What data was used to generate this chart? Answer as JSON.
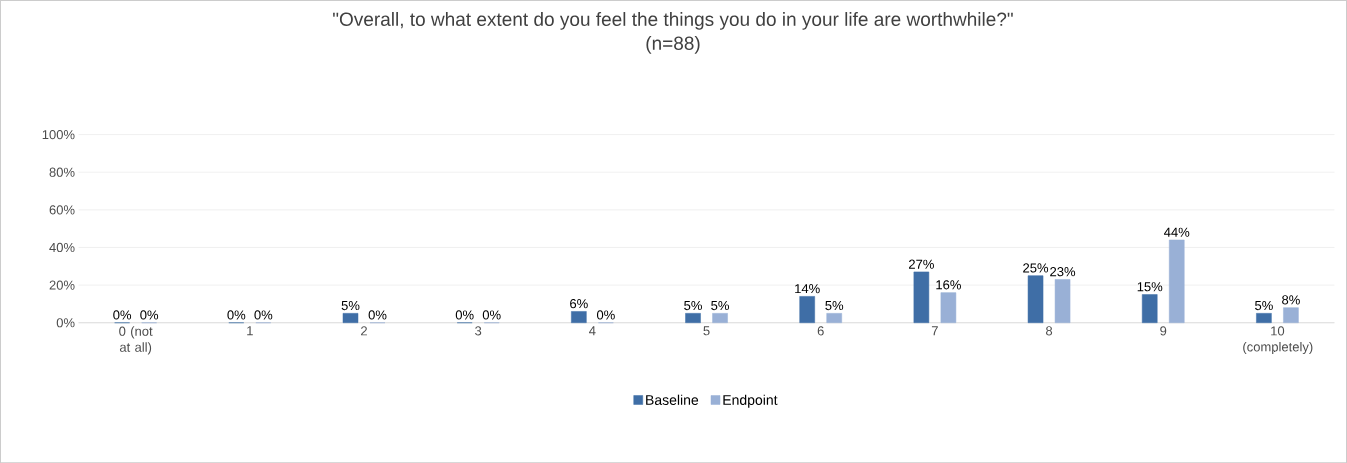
{
  "chart_data": {
    "type": "bar",
    "title": "\"Overall, to what extent do you feel the things you do in your life are worthwhile?\"",
    "subtitle": "(n=88)",
    "categories": [
      "0 (not at all)",
      "1",
      "2",
      "3",
      "4",
      "5",
      "6",
      "7",
      "8",
      "9",
      "10 (completely)"
    ],
    "series": [
      {
        "name": "Baseline",
        "color": "#3f6ea6",
        "values": [
          0,
          0,
          5,
          0,
          6,
          5,
          14,
          27,
          25,
          15,
          5
        ],
        "value_labels": [
          "0%",
          "0%",
          "5%",
          "0%",
          "6%",
          "5%",
          "14%",
          "27%",
          "25%",
          "15%",
          "5%"
        ]
      },
      {
        "name": "Endpoint",
        "color": "#99b0d6",
        "values": [
          0,
          0,
          0,
          0,
          0,
          5,
          5,
          16,
          23,
          44,
          8
        ],
        "value_labels": [
          "0%",
          "0%",
          "0%",
          "0%",
          "0%",
          "5%",
          "5%",
          "16%",
          "23%",
          "44%",
          "8%"
        ]
      }
    ],
    "ylim": [
      0,
      100
    ],
    "yticks": [
      {
        "value": 0,
        "label": "0%"
      },
      {
        "value": 20,
        "label": "20%"
      },
      {
        "value": 40,
        "label": "40%"
      },
      {
        "value": 60,
        "label": "60%"
      },
      {
        "value": 80,
        "label": "80%"
      },
      {
        "value": 100,
        "label": "100%"
      }
    ],
    "grid": "y",
    "legend": "bottom"
  }
}
